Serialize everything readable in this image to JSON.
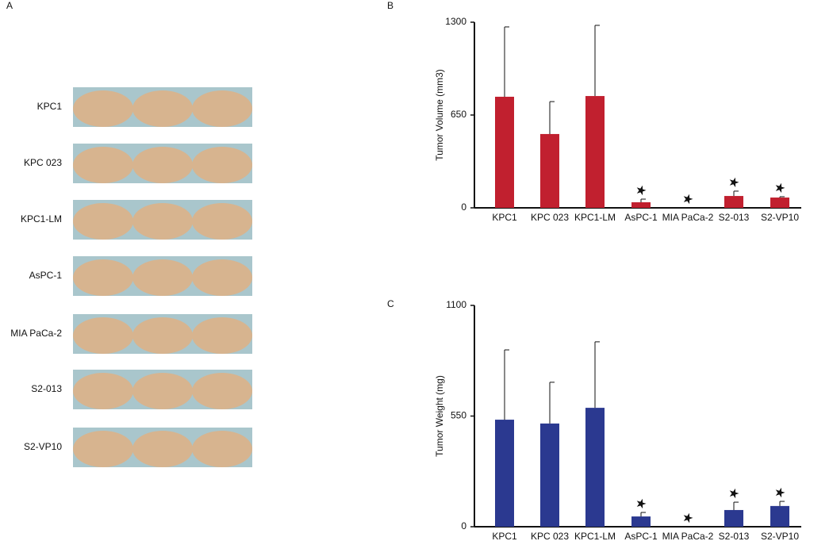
{
  "photo_panel": {
    "label": "A",
    "rows": [
      "KPC1",
      "KPC 023",
      "KPC1-LM",
      "AsPC-1",
      "MIA PaCa-2",
      "S2-013",
      "S2-VP10"
    ]
  },
  "chart_data": [
    {
      "type": "bar",
      "panel_label": "B",
      "y_label": "Tumor Volume (mm3)",
      "categories": [
        "KPC1",
        "KPC 023",
        "KPC1-LM",
        "AsPC-1",
        "MIA PaCa-2",
        "S2-013",
        "S2-VP10"
      ],
      "values": [
        778,
        517,
        783,
        39,
        0,
        83,
        72
      ],
      "errors": [
        489,
        227,
        495,
        22,
        0,
        34,
        6
      ],
      "significant": [
        false,
        false,
        false,
        true,
        true,
        true,
        true
      ],
      "color": "#c1202f",
      "ylim": [
        0,
        1300
      ],
      "yticks": [
        0,
        650,
        1300
      ]
    },
    {
      "type": "bar",
      "panel_label": "C",
      "y_label": "Tumor Weight (mg)",
      "categories": [
        "KPC1",
        "KPC 023",
        "KPC1-LM",
        "AsPC-1",
        "MIA PaCa-2",
        "S2-013",
        "S2-VP10"
      ],
      "values": [
        532,
        513,
        591,
        51,
        0,
        83,
        103
      ],
      "errors": [
        347,
        205,
        328,
        20,
        0,
        39,
        23
      ],
      "significant": [
        false,
        false,
        false,
        true,
        true,
        true,
        true
      ],
      "color": "#2b3990",
      "ylim": [
        0,
        1100
      ],
      "yticks": [
        0,
        550,
        1100
      ]
    }
  ]
}
